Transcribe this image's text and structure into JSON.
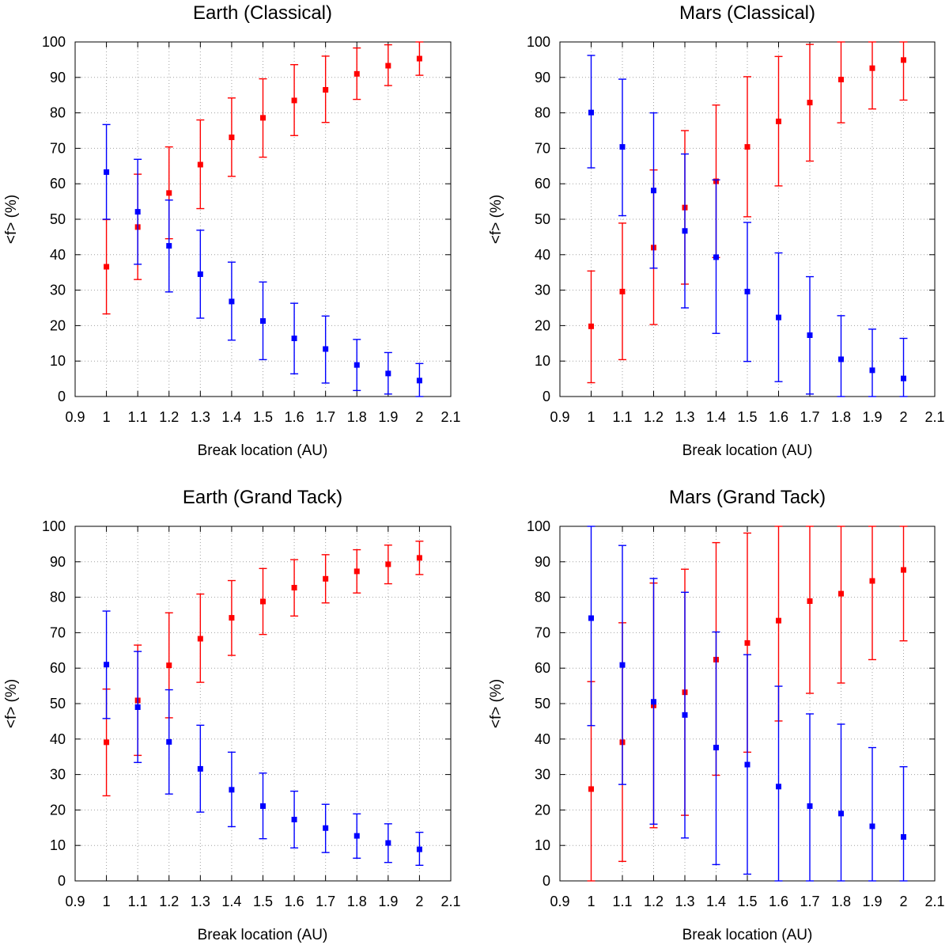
{
  "figure": {
    "background": "#ffffff"
  },
  "chart_data": [
    {
      "type": "scatter",
      "title": "Earth (Classical)",
      "xlabel": "Break location (AU)",
      "ylabel": "<f> (%)",
      "xlim": [
        0.9,
        2.1
      ],
      "ylim": [
        0,
        100
      ],
      "x_ticks": [
        "0.9",
        "1",
        "1.1",
        "1.2",
        "1.3",
        "1.4",
        "1.5",
        "1.6",
        "1.7",
        "1.8",
        "1.9",
        "2",
        "2.1"
      ],
      "y_ticks": [
        "0",
        "10",
        "20",
        "30",
        "40",
        "50",
        "60",
        "70",
        "80",
        "90",
        "100"
      ],
      "grid": true,
      "x": [
        1.0,
        1.1,
        1.2,
        1.3,
        1.4,
        1.5,
        1.6,
        1.7,
        1.8,
        1.9,
        2.0
      ],
      "series": [
        {
          "name": "red",
          "color": "#ff0000",
          "values": [
            36.6,
            47.8,
            57.4,
            65.4,
            73.1,
            78.6,
            83.5,
            86.5,
            91.0,
            93.3,
            95.3
          ],
          "lower": [
            23.3,
            33.0,
            44.5,
            53.0,
            62.1,
            67.5,
            73.6,
            77.3,
            83.8,
            87.7,
            90.6
          ],
          "upper": [
            49.9,
            62.7,
            70.4,
            78.0,
            84.2,
            89.6,
            93.6,
            96.0,
            98.3,
            99.2,
            100.0
          ]
        },
        {
          "name": "blue",
          "color": "#0000ff",
          "values": [
            63.3,
            52.1,
            42.5,
            34.5,
            26.8,
            21.3,
            16.4,
            13.4,
            8.9,
            6.5,
            4.5
          ],
          "lower": [
            50.0,
            37.3,
            29.5,
            22.1,
            15.9,
            10.4,
            6.4,
            3.8,
            1.7,
            0.7,
            0.0
          ],
          "upper": [
            76.7,
            66.9,
            55.4,
            46.9,
            37.9,
            32.3,
            26.3,
            22.7,
            16.1,
            12.4,
            9.3
          ]
        }
      ]
    },
    {
      "type": "scatter",
      "title": "Mars (Classical)",
      "xlabel": "Break location (AU)",
      "ylabel": "<f> (%)",
      "xlim": [
        0.9,
        2.1
      ],
      "ylim": [
        0,
        100
      ],
      "x_ticks": [
        "0.9",
        "1",
        "1.1",
        "1.2",
        "1.3",
        "1.4",
        "1.5",
        "1.6",
        "1.7",
        "1.8",
        "1.9",
        "2",
        "2.1"
      ],
      "y_ticks": [
        "0",
        "10",
        "20",
        "30",
        "40",
        "50",
        "60",
        "70",
        "80",
        "90",
        "100"
      ],
      "grid": true,
      "x": [
        1.0,
        1.1,
        1.2,
        1.3,
        1.4,
        1.5,
        1.6,
        1.7,
        1.8,
        1.9,
        2.0
      ],
      "series": [
        {
          "name": "red",
          "color": "#ff0000",
          "values": [
            19.8,
            29.6,
            42.0,
            53.3,
            60.7,
            70.4,
            77.6,
            82.9,
            89.4,
            92.6,
            94.9
          ],
          "lower": [
            3.9,
            10.4,
            20.3,
            31.7,
            39.2,
            50.7,
            59.4,
            66.4,
            77.2,
            81.1,
            83.6
          ],
          "upper": [
            35.4,
            48.9,
            63.9,
            75.0,
            82.2,
            90.2,
            95.9,
            99.3,
            100.0,
            100.0,
            100.0
          ]
        },
        {
          "name": "blue",
          "color": "#0000ff",
          "values": [
            80.1,
            70.4,
            58.1,
            46.7,
            39.3,
            29.6,
            22.3,
            17.3,
            10.5,
            7.4,
            5.1
          ],
          "lower": [
            64.5,
            51.0,
            36.2,
            25.0,
            17.8,
            9.9,
            4.2,
            0.7,
            0.0,
            0.0,
            0.0
          ],
          "upper": [
            96.2,
            89.5,
            80.0,
            68.4,
            61.1,
            49.1,
            40.5,
            33.8,
            22.8,
            19.0,
            16.4
          ]
        }
      ]
    },
    {
      "type": "scatter",
      "title": "Earth (Grand Tack)",
      "xlabel": "Break location (AU)",
      "ylabel": "<f> (%)",
      "xlim": [
        0.9,
        2.1
      ],
      "ylim": [
        0,
        100
      ],
      "x_ticks": [
        "0.9",
        "1",
        "1.1",
        "1.2",
        "1.3",
        "1.4",
        "1.5",
        "1.6",
        "1.7",
        "1.8",
        "1.9",
        "2",
        "2.1"
      ],
      "y_ticks": [
        "0",
        "10",
        "20",
        "30",
        "40",
        "50",
        "60",
        "70",
        "80",
        "90",
        "100"
      ],
      "grid": true,
      "x": [
        1.0,
        1.1,
        1.2,
        1.3,
        1.4,
        1.5,
        1.6,
        1.7,
        1.8,
        1.9,
        2.0
      ],
      "series": [
        {
          "name": "red",
          "color": "#ff0000",
          "values": [
            39.1,
            50.9,
            60.8,
            68.3,
            74.2,
            78.8,
            82.7,
            85.2,
            87.3,
            89.3,
            91.1
          ],
          "lower": [
            24.0,
            35.4,
            46.0,
            56.0,
            63.6,
            69.5,
            74.7,
            78.4,
            81.2,
            83.8,
            86.4
          ],
          "upper": [
            54.1,
            66.5,
            75.6,
            80.9,
            84.7,
            88.1,
            90.6,
            92.0,
            93.4,
            94.7,
            95.8
          ]
        },
        {
          "name": "blue",
          "color": "#0000ff",
          "values": [
            61.0,
            49.0,
            39.2,
            31.6,
            25.7,
            21.1,
            17.3,
            14.9,
            12.7,
            10.7,
            8.9
          ],
          "lower": [
            45.8,
            33.4,
            24.5,
            19.4,
            15.3,
            11.9,
            9.3,
            8.0,
            6.4,
            5.2,
            4.4
          ],
          "upper": [
            76.1,
            64.7,
            53.9,
            43.9,
            36.3,
            30.4,
            25.3,
            21.6,
            18.9,
            16.1,
            13.7
          ]
        }
      ]
    },
    {
      "type": "scatter",
      "title": "Mars (Grand Tack)",
      "xlabel": "Break location (AU)",
      "ylabel": "<f> (%)",
      "xlim": [
        0.9,
        2.1
      ],
      "ylim": [
        0,
        100
      ],
      "x_ticks": [
        "0.9",
        "1",
        "1.1",
        "1.2",
        "1.3",
        "1.4",
        "1.5",
        "1.6",
        "1.7",
        "1.8",
        "1.9",
        "2",
        "2.1"
      ],
      "y_ticks": [
        "0",
        "10",
        "20",
        "30",
        "40",
        "50",
        "60",
        "70",
        "80",
        "90",
        "100"
      ],
      "grid": true,
      "x": [
        1.0,
        1.1,
        1.2,
        1.3,
        1.4,
        1.5,
        1.6,
        1.7,
        1.8,
        1.9,
        2.0
      ],
      "series": [
        {
          "name": "red",
          "color": "#ff0000",
          "values": [
            25.9,
            39.1,
            49.5,
            53.2,
            62.4,
            67.1,
            73.4,
            78.9,
            81.0,
            84.6,
            87.7
          ],
          "lower": [
            0.0,
            5.5,
            15.0,
            18.5,
            29.8,
            36.3,
            45.1,
            52.9,
            55.8,
            62.4,
            67.7
          ],
          "upper": [
            56.2,
            72.8,
            84.0,
            87.9,
            95.4,
            98.1,
            100.0,
            100.0,
            100.0,
            100.0,
            100.0
          ]
        },
        {
          "name": "blue",
          "color": "#0000ff",
          "values": [
            74.1,
            60.9,
            50.5,
            46.8,
            37.6,
            32.8,
            26.6,
            21.1,
            19.0,
            15.4,
            12.4
          ],
          "lower": [
            43.8,
            27.2,
            16.0,
            12.1,
            4.6,
            1.9,
            0.0,
            0.0,
            0.0,
            0.0,
            0.0
          ],
          "upper": [
            100.0,
            94.6,
            85.3,
            81.4,
            70.2,
            63.8,
            54.9,
            47.1,
            44.2,
            37.6,
            32.2
          ]
        }
      ]
    }
  ]
}
